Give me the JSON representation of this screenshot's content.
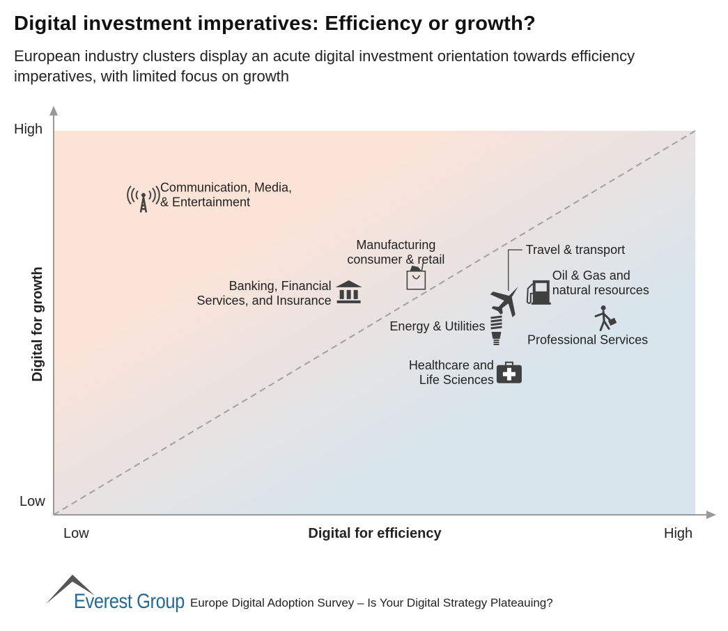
{
  "title": "Digital investment imperatives: Efficiency or growth?",
  "subtitle": "European industry clusters display an acute digital investment orientation towards efficiency imperatives, with limited focus on growth",
  "colors": {
    "growth_zone": "#fbe3d8",
    "efficiency_zone": "#d8e5ec",
    "icon": "#404040",
    "diagonal": "#a0a0a0",
    "brand": "#1f6a99"
  },
  "chart_data": {
    "type": "scatter",
    "xlabel": "Digital for efficiency",
    "ylabel": "Digital for growth",
    "x_ticks": [
      "Low",
      "High"
    ],
    "y_ticks": [
      "Low",
      "High"
    ],
    "xlim": [
      0,
      100
    ],
    "ylim": [
      0,
      100
    ],
    "grid": false,
    "reference_line": "diagonal dashed y = x",
    "points": [
      {
        "label": [
          "Communication, Media,",
          "& Entertainment"
        ],
        "icon": "radio-tower-icon",
        "x": 14,
        "y": 82
      },
      {
        "label": [
          "Manufacturing",
          "consumer & retail"
        ],
        "icon": "shopping-bag-icon",
        "x": 56.5,
        "y": 62
      },
      {
        "label": [
          "Banking, Financial",
          "Services, and Insurance"
        ],
        "icon": "bank-icon",
        "x": 46,
        "y": 58
      },
      {
        "label": [
          "Travel & transport"
        ],
        "icon": "airplane-icon",
        "x": 70,
        "y": 56.5
      },
      {
        "label": [
          "Oil & Gas and",
          "natural resources"
        ],
        "icon": "fuel-pump-icon",
        "x": 75,
        "y": 58
      },
      {
        "label": [
          "Energy & Utilities"
        ],
        "icon": "light-bulb-icon",
        "x": 69,
        "y": 48
      },
      {
        "label": [
          "Professional Services"
        ],
        "icon": "businessman-icon",
        "x": 86,
        "y": 51
      },
      {
        "label": [
          "Healthcare and",
          "Life Sciences"
        ],
        "icon": "medical-kit-icon",
        "x": 71,
        "y": 37
      }
    ]
  },
  "footer": {
    "logo": "Everest Group",
    "source": "Europe Digital Adoption Survey – Is Your Digital Strategy Plateauing?"
  }
}
